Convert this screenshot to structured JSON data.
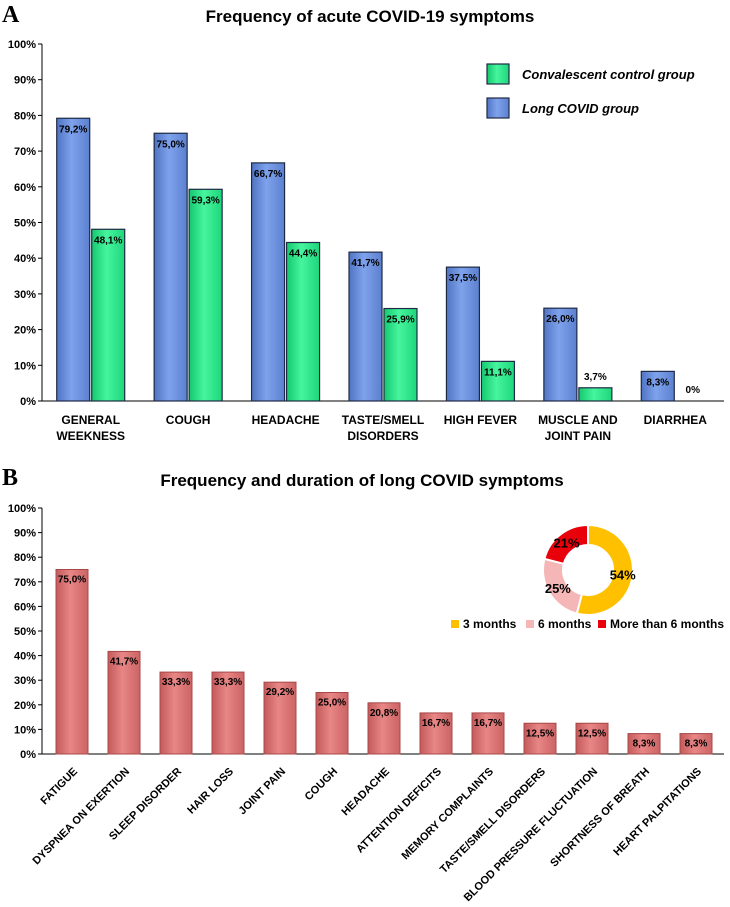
{
  "chart_data": [
    {
      "panel_label": "A",
      "type": "bar",
      "title": "Frequency of acute COVID-19 symptoms",
      "categories": [
        "GENERAL WEEKNESS",
        "COUGH",
        "HEADACHE",
        "TASTE/SMELL DISORDERS",
        "HIGH FEVER",
        "MUSCLE AND JOINT PAIN",
        "DIARRHEA"
      ],
      "category_lines": [
        [
          "GENERAL",
          "WEEKNESS"
        ],
        [
          "COUGH"
        ],
        [
          "HEADACHE"
        ],
        [
          "TASTE/SMELL",
          "DISORDERS"
        ],
        [
          "HIGH FEVER"
        ],
        [
          "MUSCLE AND",
          "JOINT PAIN"
        ],
        [
          "DIARRHEA"
        ]
      ],
      "series": [
        {
          "name": "Long COVID group",
          "color": "#6F95E3",
          "values": [
            79.2,
            75.0,
            66.7,
            41.7,
            37.5,
            26.0,
            8.3
          ],
          "labels": [
            "79,2%",
            "75,0%",
            "66,7%",
            "41,7%",
            "37,5%",
            "26,0%",
            "8,3%"
          ]
        },
        {
          "name": "Convalescent control group",
          "color": "#2EE88A",
          "values": [
            48.1,
            59.3,
            44.4,
            25.9,
            11.1,
            3.7,
            0
          ],
          "labels": [
            "48,1%",
            "59,3%",
            "44,4%",
            "25,9%",
            "11,1%",
            "3,7%",
            "0%"
          ]
        }
      ],
      "legend_order": [
        "Convalescent control group",
        "Long COVID group"
      ],
      "legend_position": "top-right",
      "ylim": [
        0,
        100
      ],
      "yticks": [
        "0%",
        "10%",
        "20%",
        "30%",
        "40%",
        "50%",
        "60%",
        "70%",
        "80%",
        "90%",
        "100%"
      ],
      "xlabel": "",
      "ylabel": "",
      "grid": false
    },
    {
      "panel_label": "B",
      "type": "bar",
      "title": "Frequency and duration of long COVID symptoms",
      "categories": [
        "FATIGUE",
        "DYSPNEA ON EXERTION",
        "SLEEP DISORDER",
        "HAIR LOSS",
        "JOINT PAIN",
        "COUGH",
        "HEADACHE",
        "ATTENTION DEFICITS",
        "MEMORY COMPLAINTS",
        "TASTE/SMELL DISORDERS",
        "BLOOD PRESSURE FLUCTUATION",
        "SHORTNESS OF BREATH",
        "HEART PALPITATIONS"
      ],
      "series": [
        {
          "name": "Long COVID symptoms",
          "color": "#DB7373",
          "values": [
            75.0,
            41.7,
            33.3,
            33.3,
            29.2,
            25.0,
            20.8,
            16.7,
            16.7,
            12.5,
            12.5,
            8.3,
            8.3
          ],
          "labels": [
            "75,0%",
            "41,7%",
            "33,3%",
            "33,3%",
            "29,2%",
            "25,0%",
            "20,8%",
            "16,7%",
            "16,7%",
            "12,5%",
            "12,5%",
            "8,3%",
            "8,3%"
          ]
        }
      ],
      "ylim": [
        0,
        100
      ],
      "yticks": [
        "0%",
        "10%",
        "20%",
        "30%",
        "40%",
        "50%",
        "60%",
        "70%",
        "80%",
        "90%",
        "100%"
      ],
      "xlabel": "",
      "ylabel": "",
      "grid": false,
      "inset": {
        "type": "pie",
        "style": "donut",
        "slices": [
          {
            "name": "3 months",
            "value": 54,
            "label": "54%",
            "color": "#FFC000"
          },
          {
            "name": "6 months",
            "value": 25,
            "label": "25%",
            "color": "#F4B6B6"
          },
          {
            "name": "More than 6 months",
            "value": 21,
            "label": "21%",
            "color": "#E8000B"
          }
        ],
        "legend_position": "bottom"
      }
    }
  ]
}
